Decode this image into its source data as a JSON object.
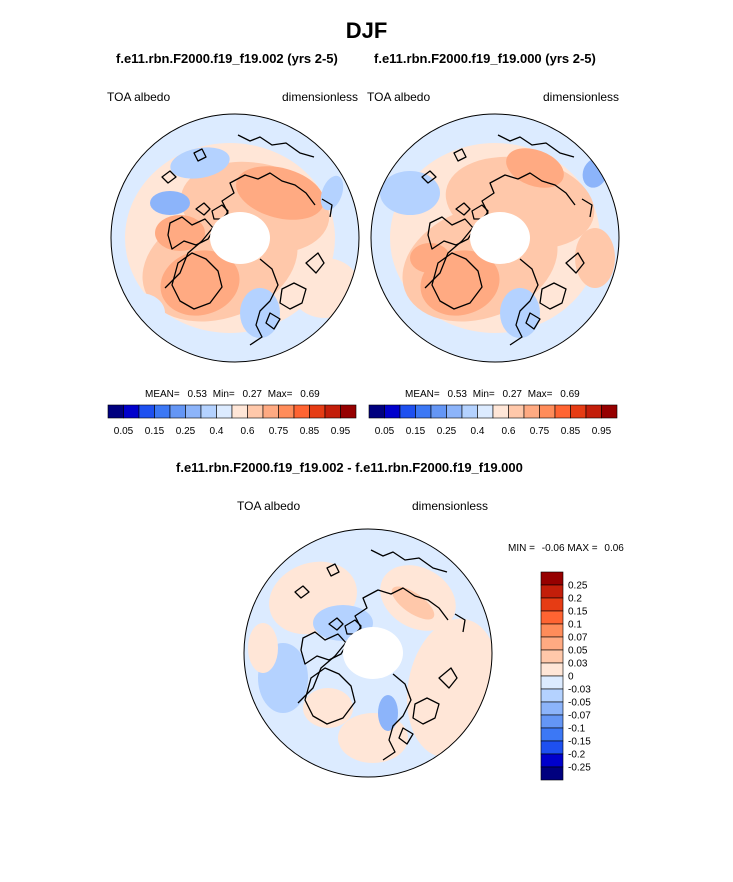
{
  "season_title": "DJF",
  "panels": [
    {
      "case_title": "f.e11.rbn.F2000.f19_f19.002 (yrs 2-5)",
      "variable": "TOA albedo",
      "units": "dimensionless",
      "stats": {
        "mean_label": "MEAN=",
        "mean": "0.53",
        "min_label": "Min=",
        "min": "0.27",
        "max_label": "Max=",
        "max": "0.69"
      }
    },
    {
      "case_title": "f.e11.rbn.F2000.f19_f19.000 (yrs 2-5)",
      "variable": "TOA albedo",
      "units": "dimensionless",
      "stats": {
        "mean_label": "MEAN=",
        "mean": "0.53",
        "min_label": "Min=",
        "min": "0.27",
        "max_label": "Max=",
        "max": "0.69"
      }
    }
  ],
  "abs_colorbar": {
    "colors": [
      "#00007f",
      "#0000cc",
      "#1e50f0",
      "#3c78f5",
      "#6496f5",
      "#8cb4fa",
      "#b4d2ff",
      "#dcebff",
      "#ffe6d7",
      "#ffc8aa",
      "#ffaa82",
      "#ff8c5a",
      "#ff6432",
      "#e63c14",
      "#c31e0a",
      "#960000"
    ],
    "tick_labels": [
      "0.05",
      "0.15",
      "0.25",
      "0.4",
      "0.6",
      "0.75",
      "0.85",
      "0.95"
    ]
  },
  "diff": {
    "title": "f.e11.rbn.F2000.f19_f19.002 - f.e11.rbn.F2000.f19_f19.000",
    "variable": "TOA albedo",
    "units": "dimensionless",
    "min_label": "MIN =",
    "min": "-0.06",
    "max_label": "MAX =",
    "max": "0.06",
    "colorbar": {
      "colors": [
        "#960000",
        "#c31e0a",
        "#e63c14",
        "#ff6432",
        "#ff8c5a",
        "#ffaa82",
        "#ffc8aa",
        "#ffe6d7",
        "#dcebff",
        "#b4d2ff",
        "#8cb4fa",
        "#6496f5",
        "#3c78f5",
        "#1e50f0",
        "#0000cc",
        "#00007f"
      ],
      "tick_labels": [
        "0.25",
        "0.2",
        "0.15",
        "0.1",
        "0.07",
        "0.05",
        "0.03",
        "0",
        "-0.03",
        "-0.05",
        "-0.07",
        "-0.1",
        "-0.15",
        "-0.2",
        "-0.25"
      ]
    }
  },
  "colors": {
    "coast": "#000000",
    "pole_mask": "#ffffff"
  }
}
